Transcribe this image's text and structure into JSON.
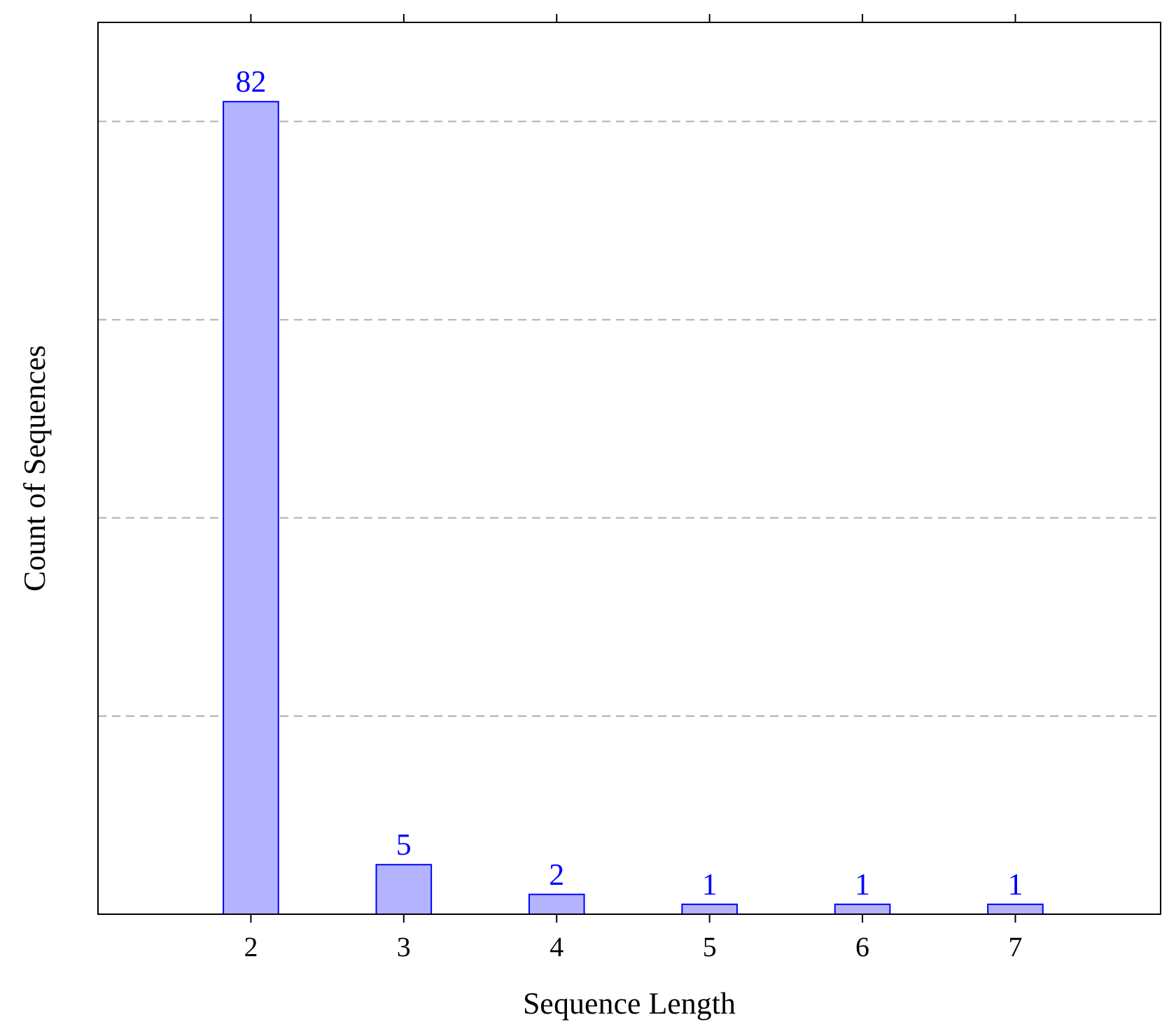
{
  "chart_data": {
    "type": "bar",
    "xlabel": "Sequence Length",
    "ylabel": "Count of Sequences",
    "x": [
      2,
      3,
      4,
      5,
      6,
      7
    ],
    "values": [
      82,
      5,
      2,
      1,
      1,
      1
    ],
    "color": "#b3b3ff",
    "xlim": [
      1,
      7.95
    ],
    "xticks": [
      2,
      3,
      4,
      5,
      6,
      7
    ],
    "ylim": [
      0,
      90
    ],
    "yticks": [
      {
        "value": 20,
        "label": null
      },
      {
        "value": 40,
        "label": null
      },
      {
        "value": 60,
        "label": null
      },
      {
        "value": 80,
        "label": null
      }
    ],
    "tick_labels": "x",
    "grid": "y",
    "data_labels": true
  }
}
